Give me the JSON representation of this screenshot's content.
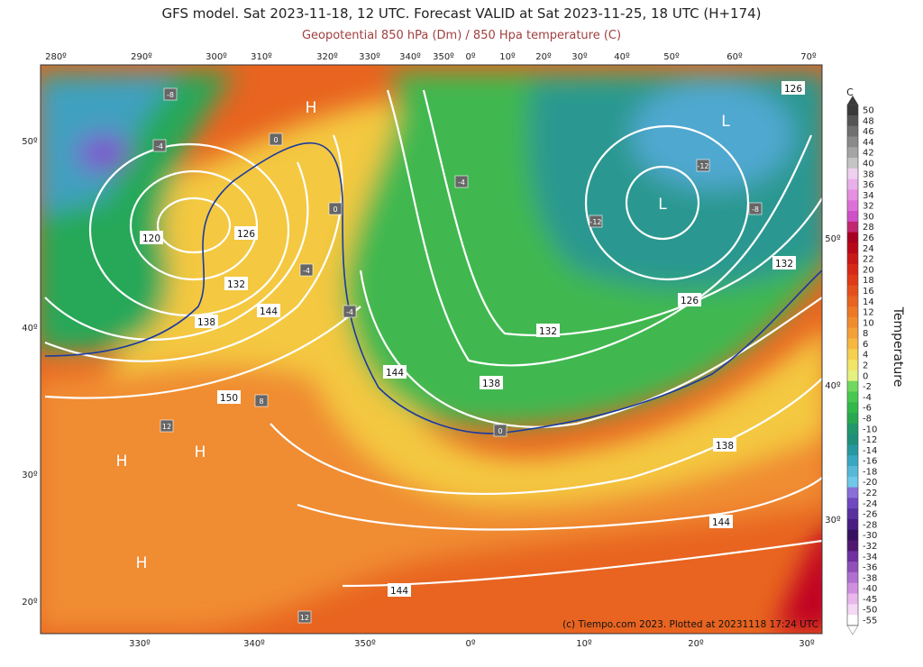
{
  "header": {
    "title": "GFS model. Sat 2023-11-18, 12 UTC. Forecast VALID at Sat 2023-11-25, 18 UTC (H+174)",
    "subtitle": "Geopotential 850 hPa (Dm) / 850 Hpa temperature (C)"
  },
  "map": {
    "top_lon_labels": [
      "280º",
      "290º",
      "300º",
      "310º",
      "320º",
      "330º",
      "340º",
      "350º",
      "0º",
      "10º",
      "20º",
      "30º",
      "40º",
      "50º",
      "60º",
      "70º"
    ],
    "bottom_lon_labels": [
      "330º",
      "340º",
      "350º",
      "0º",
      "10º",
      "20º",
      "30º"
    ],
    "left_lat_labels": [
      "50º",
      "40º",
      "30º",
      "20º"
    ],
    "right_lat_labels": [
      "50º",
      "40º",
      "30º"
    ],
    "pressure_centers": [
      "H",
      "L",
      "L",
      "H",
      "H",
      "H"
    ],
    "contour_labels": [
      "120",
      "126",
      "132",
      "138",
      "144",
      "150",
      "144",
      "138",
      "132",
      "126",
      "132",
      "138",
      "144",
      "144",
      "126"
    ],
    "temperature_labels": [
      "-8",
      "-4",
      "0",
      "0",
      "0",
      "8",
      "12",
      "-12",
      "-12",
      "-4",
      "-4",
      "-4",
      "12",
      "-8"
    ],
    "credit": "(c) Tiempo.com 2023. Plotted at 20231118 17:24 UTC"
  },
  "colorbar": {
    "unit": "C",
    "label": "Temperature",
    "ticks": [
      50,
      48,
      46,
      44,
      42,
      40,
      38,
      36,
      34,
      32,
      30,
      28,
      26,
      24,
      22,
      20,
      18,
      16,
      14,
      12,
      10,
      8,
      6,
      4,
      2,
      0,
      -2,
      -4,
      -6,
      -8,
      -10,
      -12,
      -14,
      -16,
      -18,
      -20,
      -22,
      -24,
      -26,
      -28,
      -30,
      -32,
      -34,
      -36,
      -38,
      -40,
      -45,
      -50,
      -55
    ],
    "colors": [
      "#3a3a3a",
      "#555555",
      "#707070",
      "#8a8a8a",
      "#a5a5a5",
      "#c4c4c4",
      "#f0d0f0",
      "#eab0ea",
      "#e590e0",
      "#dc70d8",
      "#d050c8",
      "#c02870",
      "#a80020",
      "#b80818",
      "#c81818",
      "#d82818",
      "#e03a18",
      "#e4501c",
      "#e86420",
      "#ec7828",
      "#f08c30",
      "#f4a038",
      "#f6b840",
      "#f6d050",
      "#f2e468",
      "#e4f080",
      "#70d860",
      "#48c850",
      "#30b848",
      "#28a850",
      "#20986c",
      "#20907c",
      "#2898a0",
      "#38a8c0",
      "#58b8d8",
      "#70c8e8",
      "#8870d8",
      "#7048c0",
      "#5830a0",
      "#481c80",
      "#381060",
      "#501870",
      "#7030a0",
      "#9050b8",
      "#b070d0",
      "#d090e0",
      "#e8b8ec",
      "#f4d8f4",
      "#ffffff"
    ]
  }
}
